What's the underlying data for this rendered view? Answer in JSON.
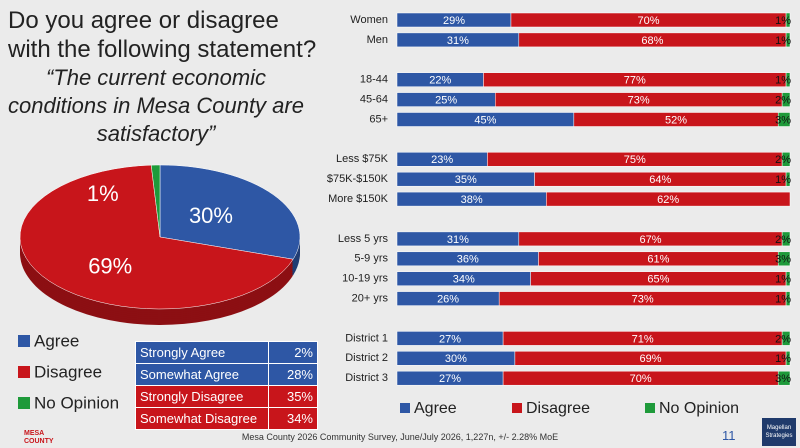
{
  "title": "Do you agree or disagree with the following statement?",
  "quote": "“The current economic conditions in Mesa County are satisfactory”",
  "chart_data": [
    {
      "type": "pie",
      "categories": [
        "Agree",
        "Disagree",
        "No Opinion"
      ],
      "values": [
        30,
        69,
        1
      ],
      "value_labels": [
        "30%",
        "69%",
        "1%"
      ],
      "colors": [
        "#2e57a5",
        "#c8151b",
        "#1e9a3a"
      ]
    },
    {
      "type": "bar",
      "orientation": "horizontal",
      "stacked": true,
      "xlim": [
        0,
        100
      ],
      "categories": [
        "Women",
        "Men",
        null,
        "18-44",
        "45-64",
        "65+",
        null,
        "Less $75K",
        "$75K-$150K",
        "More $150K",
        null,
        "Less 5 yrs",
        "5-9 yrs",
        "10-19 yrs",
        "20+ yrs",
        null,
        "District 1",
        "District 2",
        "District 3"
      ],
      "series": [
        {
          "name": "Agree",
          "color": "#2e57a5",
          "values": [
            29,
            31,
            null,
            22,
            25,
            45,
            null,
            23,
            35,
            38,
            null,
            31,
            36,
            34,
            26,
            null,
            27,
            30,
            27
          ],
          "value_labels": [
            "29%",
            "31%",
            null,
            "22%",
            "25%",
            "45%",
            null,
            "23%",
            "35%",
            "38%",
            null,
            "31%",
            "36%",
            "34%",
            "26%",
            null,
            "27%",
            "30%",
            "27%"
          ]
        },
        {
          "name": "Disagree",
          "color": "#c8151b",
          "values": [
            70,
            68,
            null,
            77,
            73,
            52,
            null,
            75,
            64,
            62,
            null,
            67,
            61,
            65,
            73,
            null,
            71,
            69,
            70
          ],
          "value_labels": [
            "70%",
            "68%",
            null,
            "77%",
            "73%",
            "52%",
            null,
            "75%",
            "64%",
            "62%",
            null,
            "67%",
            "61%",
            "65%",
            "73%",
            null,
            "71%",
            "69%",
            "70%"
          ]
        },
        {
          "name": "No Opinion",
          "color": "#1e9a3a",
          "values": [
            1,
            1,
            null,
            1,
            2,
            3,
            null,
            2,
            1,
            null,
            null,
            2,
            3,
            1,
            1,
            null,
            2,
            1,
            3
          ],
          "value_labels": [
            "1%",
            "1%",
            null,
            "1%",
            "2%",
            "3%",
            null,
            "2%",
            "1%",
            null,
            null,
            "2%",
            "3%",
            "1%",
            "1%",
            null,
            "2%",
            "1%",
            "3%"
          ]
        }
      ]
    }
  ],
  "table": {
    "rows": [
      [
        "Strongly Agree",
        "2%"
      ],
      [
        "Somewhat Agree",
        "28%"
      ],
      [
        "Strongly Disagree",
        "35%"
      ],
      [
        "Somewhat Disagree",
        "34%"
      ]
    ]
  },
  "footer": "Mesa County 2026 Community Survey, June/July 2026, 1,227n, +/- 2.28% MoE",
  "page_number": "11",
  "logo_left": "MESA COUNTY",
  "logo_right": "Magellan Strategies"
}
